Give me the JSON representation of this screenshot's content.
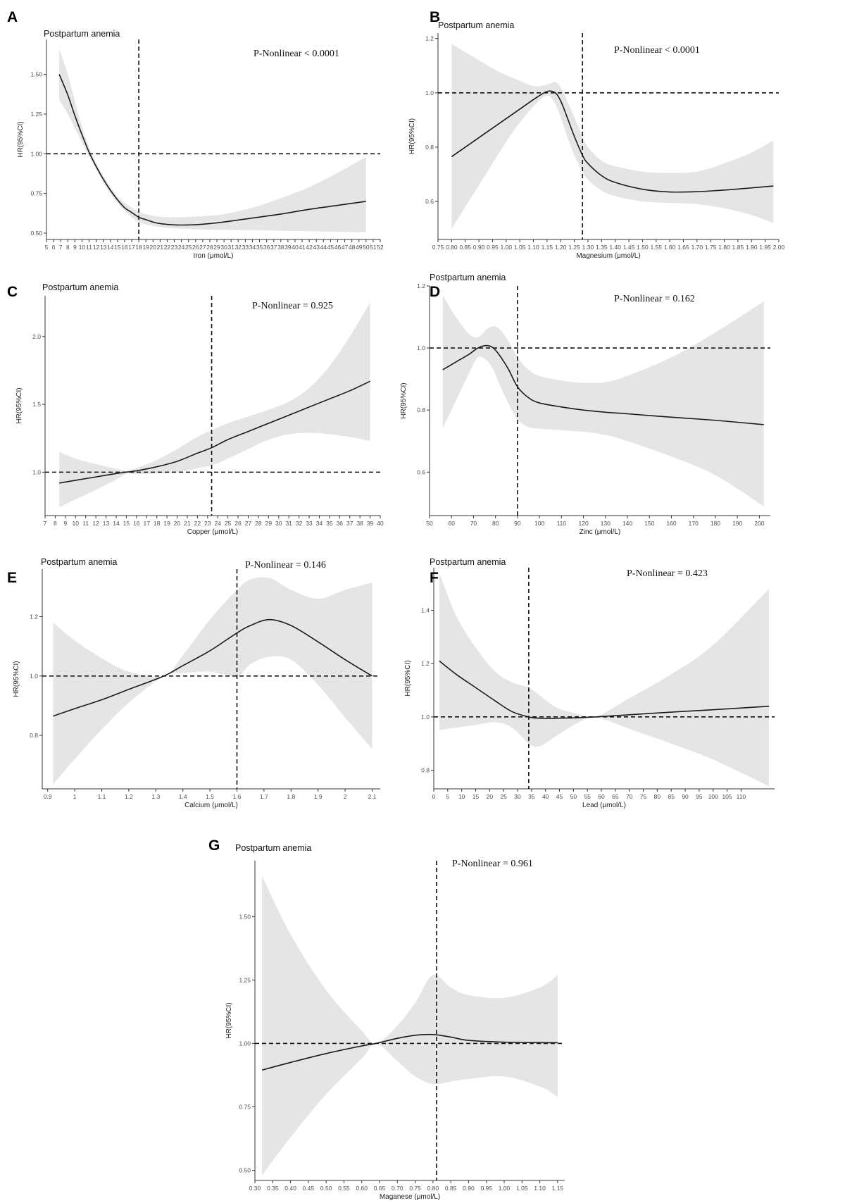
{
  "chart_data": [
    {
      "panel": "A",
      "type": "line",
      "title": "Postpartum anemia",
      "annotation": "P-Nonlinear < 0.0001",
      "xlabel": "Iron (μmol/L)",
      "ylabel": "HR(95%CI)",
      "xlim": [
        5,
        52
      ],
      "ylim": [
        0.46,
        1.72
      ],
      "xticks": [
        5,
        6,
        7,
        8,
        9,
        10,
        11,
        12,
        13,
        14,
        15,
        16,
        17,
        18,
        19,
        20,
        21,
        22,
        23,
        24,
        25,
        26,
        27,
        28,
        29,
        30,
        31,
        32,
        33,
        34,
        35,
        36,
        37,
        38,
        39,
        40,
        41,
        42,
        43,
        44,
        45,
        46,
        47,
        48,
        49,
        50,
        51,
        52
      ],
      "yticks": [
        0.5,
        0.75,
        1.0,
        1.25,
        1.5
      ],
      "yticklabels": [
        "0.50",
        "0.75",
        "1.00",
        "1.25",
        "1.50"
      ],
      "ref_x": 18,
      "ref_y": 1.0,
      "x": [
        6.8,
        8,
        9,
        10,
        11,
        12,
        13,
        14,
        15,
        16,
        17,
        18,
        19,
        20,
        21,
        22,
        23,
        24,
        26,
        28,
        30,
        34,
        38,
        42,
        46,
        50
      ],
      "y": [
        1.5,
        1.37,
        1.24,
        1.12,
        1.01,
        0.92,
        0.84,
        0.77,
        0.71,
        0.66,
        0.63,
        0.6,
        0.585,
        0.57,
        0.56,
        0.555,
        0.552,
        0.551,
        0.553,
        0.56,
        0.57,
        0.595,
        0.62,
        0.65,
        0.675,
        0.7
      ],
      "lower": [
        1.34,
        1.25,
        1.16,
        1.07,
        0.98,
        0.9,
        0.82,
        0.75,
        0.69,
        0.64,
        0.6,
        0.57,
        0.555,
        0.545,
        0.538,
        0.533,
        0.53,
        0.527,
        0.524,
        0.522,
        0.52,
        0.518,
        0.515,
        0.512,
        0.508,
        0.505
      ],
      "upper": [
        1.66,
        1.5,
        1.33,
        1.17,
        1.04,
        0.94,
        0.86,
        0.79,
        0.73,
        0.69,
        0.66,
        0.635,
        0.62,
        0.61,
        0.603,
        0.6,
        0.6,
        0.6,
        0.605,
        0.61,
        0.62,
        0.66,
        0.72,
        0.79,
        0.88,
        0.98
      ]
    },
    {
      "panel": "B",
      "type": "line",
      "title": "Postpartum anemia",
      "annotation": "P-Nonlinear < 0.0001",
      "xlabel": "Magnesium (μmol/L)",
      "ylabel": "HR(95%CI)",
      "xlim": [
        0.75,
        2.0
      ],
      "ylim": [
        0.46,
        1.22
      ],
      "xticks": [
        0.75,
        0.8,
        0.85,
        0.9,
        0.95,
        1.0,
        1.05,
        1.1,
        1.15,
        1.2,
        1.25,
        1.3,
        1.35,
        1.4,
        1.45,
        1.5,
        1.55,
        1.6,
        1.65,
        1.7,
        1.75,
        1.8,
        1.85,
        1.9,
        1.95,
        2.0
      ],
      "xticklabels": [
        "0.75",
        "0.80",
        "0.85",
        "0.90",
        "0.95",
        "1.00",
        "1.05",
        "1.10",
        "1.15",
        "1.20",
        "1.25",
        "1.30",
        "1.35",
        "1.40",
        "1.45",
        "1.50",
        "1.55",
        "1.60",
        "1.65",
        "1.70",
        "1.75",
        "1.80",
        "1.85",
        "1.90",
        "1.95",
        "2.00"
      ],
      "yticks": [
        0.6,
        0.8,
        1.0,
        1.2
      ],
      "yticklabels": [
        "0.6",
        "0.8",
        "1.0",
        "1.2"
      ],
      "ref_x": 1.28,
      "ref_y": 1.0,
      "x": [
        0.8,
        0.85,
        0.9,
        0.95,
        1.0,
        1.05,
        1.1,
        1.15,
        1.18,
        1.2,
        1.22,
        1.25,
        1.28,
        1.3,
        1.35,
        1.4,
        1.5,
        1.6,
        1.7,
        1.8,
        1.9,
        1.98
      ],
      "y": [
        0.765,
        0.8,
        0.835,
        0.87,
        0.905,
        0.94,
        0.975,
        1.005,
        1.0,
        0.97,
        0.92,
        0.84,
        0.77,
        0.74,
        0.695,
        0.67,
        0.645,
        0.635,
        0.636,
        0.642,
        0.65,
        0.657
      ],
      "lower": [
        0.5,
        0.58,
        0.66,
        0.74,
        0.82,
        0.89,
        0.95,
        0.99,
        0.96,
        0.91,
        0.85,
        0.77,
        0.71,
        0.68,
        0.64,
        0.62,
        0.6,
        0.595,
        0.59,
        0.575,
        0.55,
        0.52
      ],
      "upper": [
        1.18,
        1.15,
        1.12,
        1.09,
        1.065,
        1.045,
        1.025,
        1.03,
        1.04,
        1.02,
        0.98,
        0.91,
        0.84,
        0.8,
        0.75,
        0.73,
        0.71,
        0.705,
        0.71,
        0.74,
        0.78,
        0.825
      ]
    },
    {
      "panel": "C",
      "type": "line",
      "title": "Postpartum anemia",
      "annotation": "P-Nonlinear = 0.925",
      "xlabel": "Copper (μmol/L)",
      "ylabel": "HR(95%CI)",
      "xlim": [
        7,
        40
      ],
      "ylim": [
        0.68,
        2.3
      ],
      "xticks": [
        7,
        8,
        9,
        10,
        11,
        12,
        13,
        14,
        15,
        16,
        17,
        18,
        19,
        20,
        21,
        22,
        23,
        24,
        25,
        26,
        27,
        28,
        29,
        30,
        31,
        32,
        33,
        34,
        35,
        36,
        37,
        38,
        39,
        40
      ],
      "yticks": [
        1.0,
        1.5,
        2.0
      ],
      "yticklabels": [
        "1.0",
        "1.5",
        "2.0"
      ],
      "ref_x": 23.4,
      "ref_y": 1.0,
      "x": [
        8.4,
        10,
        12,
        14,
        15,
        16,
        18,
        20,
        22,
        23.4,
        25,
        27,
        29,
        31,
        33,
        35,
        37,
        39
      ],
      "y": [
        0.92,
        0.94,
        0.965,
        0.99,
        1.0,
        1.01,
        1.04,
        1.08,
        1.14,
        1.18,
        1.24,
        1.3,
        1.36,
        1.42,
        1.48,
        1.54,
        1.6,
        1.67
      ],
      "lower": [
        0.74,
        0.8,
        0.87,
        0.945,
        0.99,
        0.985,
        0.99,
        1.0,
        1.03,
        1.05,
        1.1,
        1.17,
        1.24,
        1.28,
        1.29,
        1.28,
        1.26,
        1.23
      ],
      "upper": [
        1.15,
        1.1,
        1.06,
        1.025,
        1.01,
        1.03,
        1.09,
        1.17,
        1.26,
        1.31,
        1.36,
        1.41,
        1.46,
        1.52,
        1.62,
        1.78,
        2.0,
        2.25
      ]
    },
    {
      "panel": "D",
      "type": "line",
      "title": "Postpartum anemia",
      "annotation": "P-Nonlinear = 0.162",
      "xlabel": "Zinc (μmol/L)",
      "ylabel": "HR(95%CI)",
      "xlim": [
        50,
        205
      ],
      "ylim": [
        0.46,
        1.2
      ],
      "xticks": [
        50,
        60,
        70,
        80,
        90,
        100,
        110,
        120,
        130,
        140,
        150,
        160,
        170,
        180,
        190,
        200
      ],
      "yticks": [
        0.6,
        0.8,
        1.0,
        1.2
      ],
      "yticklabels": [
        "0.6",
        "0.8",
        "1.0",
        "1.2"
      ],
      "ref_x": 90,
      "ref_y": 1.0,
      "x": [
        56,
        62,
        68,
        72,
        76,
        79,
        82,
        86,
        90,
        95,
        100,
        110,
        120,
        130,
        140,
        160,
        180,
        202
      ],
      "y": [
        0.93,
        0.955,
        0.98,
        1.0,
        1.008,
        1.0,
        0.975,
        0.93,
        0.875,
        0.84,
        0.823,
        0.81,
        0.8,
        0.793,
        0.788,
        0.777,
        0.767,
        0.753
      ],
      "lower": [
        0.74,
        0.83,
        0.92,
        0.97,
        0.96,
        0.93,
        0.88,
        0.82,
        0.77,
        0.745,
        0.74,
        0.735,
        0.73,
        0.72,
        0.7,
        0.65,
        0.59,
        0.49
      ],
      "upper": [
        1.17,
        1.1,
        1.045,
        1.035,
        1.06,
        1.07,
        1.06,
        1.02,
        0.97,
        0.93,
        0.91,
        0.895,
        0.888,
        0.89,
        0.91,
        0.97,
        1.05,
        1.15
      ]
    },
    {
      "panel": "E",
      "type": "line",
      "title": "Postpartum anemia",
      "annotation": "P-Nonlinear = 0.146",
      "xlabel": "Calcium (μmol/L)",
      "ylabel": "HR(95%CI)",
      "xlim": [
        0.88,
        2.13
      ],
      "ylim": [
        0.62,
        1.36
      ],
      "xticks": [
        0.9,
        1.0,
        1.1,
        1.2,
        1.3,
        1.4,
        1.5,
        1.6,
        1.7,
        1.8,
        1.9,
        2.0,
        2.1
      ],
      "yticks": [
        0.8,
        1.0,
        1.2
      ],
      "yticklabels": [
        "0.8",
        "1.0",
        "1.2"
      ],
      "ref_x": 1.6,
      "ref_y": 1.0,
      "x": [
        0.92,
        1.0,
        1.1,
        1.2,
        1.33,
        1.4,
        1.5,
        1.6,
        1.65,
        1.72,
        1.8,
        1.9,
        2.0,
        2.1
      ],
      "y": [
        0.865,
        0.89,
        0.92,
        0.955,
        1.0,
        1.035,
        1.085,
        1.145,
        1.17,
        1.19,
        1.17,
        1.115,
        1.055,
        1.0
      ],
      "lower": [
        0.635,
        0.72,
        0.82,
        0.91,
        1.0,
        1.01,
        1.015,
        1.0,
        1.04,
        1.065,
        1.055,
        0.97,
        0.86,
        0.755
      ],
      "upper": [
        1.18,
        1.12,
        1.06,
        1.015,
        1.0,
        1.07,
        1.19,
        1.29,
        1.325,
        1.33,
        1.29,
        1.26,
        1.29,
        1.315
      ]
    },
    {
      "panel": "F",
      "type": "line",
      "title": "Postpartum anemia",
      "annotation": "P-Nonlinear = 0.423",
      "xlabel": "Lead (μmol/L)",
      "ylabel": "HR(95%CI)",
      "xlim": [
        0,
        122
      ],
      "ylim": [
        0.73,
        1.56
      ],
      "xticks": [
        0,
        5,
        10,
        15,
        20,
        25,
        30,
        35,
        40,
        45,
        50,
        55,
        60,
        65,
        70,
        75,
        80,
        85,
        90,
        95,
        100,
        105,
        110
      ],
      "yticks": [
        0.8,
        1.0,
        1.2,
        1.4
      ],
      "yticklabels": [
        "0.8",
        "1.0",
        "1.2",
        "1.4"
      ],
      "ref_x": 34,
      "ref_y": 1.0,
      "x": [
        2,
        8,
        15,
        22,
        28,
        34,
        38,
        44,
        52,
        58,
        70,
        85,
        100,
        120
      ],
      "y": [
        1.21,
        1.16,
        1.11,
        1.06,
        1.02,
        1.0,
        0.995,
        0.995,
        0.997,
        1.0,
        1.008,
        1.018,
        1.027,
        1.04
      ],
      "lower": [
        0.95,
        0.96,
        0.97,
        0.98,
        0.96,
        0.9,
        0.89,
        0.93,
        0.98,
        1.0,
        0.955,
        0.9,
        0.84,
        0.74
      ],
      "upper": [
        1.54,
        1.38,
        1.26,
        1.17,
        1.13,
        1.11,
        1.08,
        1.035,
        1.01,
        1.0,
        1.07,
        1.16,
        1.27,
        1.48
      ]
    },
    {
      "panel": "G",
      "type": "line",
      "title": "Postpartum anemia",
      "annotation": "P-Nonlinear = 0.961",
      "xlabel": "Maganese (μmol/L)",
      "ylabel": "HR(95%CI)",
      "xlim": [
        0.3,
        1.17
      ],
      "ylim": [
        0.46,
        1.72
      ],
      "xticks": [
        0.3,
        0.35,
        0.4,
        0.45,
        0.5,
        0.55,
        0.6,
        0.65,
        0.7,
        0.75,
        0.8,
        0.85,
        0.9,
        0.95,
        1.0,
        1.05,
        1.1,
        1.15
      ],
      "xticklabels": [
        "0.30",
        "0.35",
        "0.40",
        "0.45",
        "0.50",
        "0.55",
        "0.60",
        "0.65",
        "0.70",
        "0.75",
        "0.80",
        "0.85",
        "0.90",
        "0.95",
        "1.00",
        "1.05",
        "1.10",
        "1.15"
      ],
      "yticks": [
        0.5,
        0.75,
        1.0,
        1.25,
        1.5
      ],
      "yticklabels": [
        "0.50",
        "0.75",
        "1.00",
        "1.25",
        "1.50"
      ],
      "ref_x": 0.81,
      "ref_y": 1.0,
      "x": [
        0.32,
        0.4,
        0.5,
        0.6,
        0.64,
        0.7,
        0.75,
        0.8,
        0.85,
        0.9,
        1.0,
        1.1,
        1.15
      ],
      "y": [
        0.895,
        0.925,
        0.96,
        0.99,
        1.0,
        1.02,
        1.032,
        1.035,
        1.025,
        1.012,
        1.005,
        1.003,
        1.003
      ],
      "lower": [
        0.48,
        0.63,
        0.8,
        0.94,
        1.0,
        0.93,
        0.87,
        0.84,
        0.85,
        0.86,
        0.87,
        0.83,
        0.79
      ],
      "upper": [
        1.66,
        1.43,
        1.21,
        1.05,
        1.0,
        1.07,
        1.16,
        1.27,
        1.22,
        1.19,
        1.18,
        1.22,
        1.27
      ]
    }
  ]
}
